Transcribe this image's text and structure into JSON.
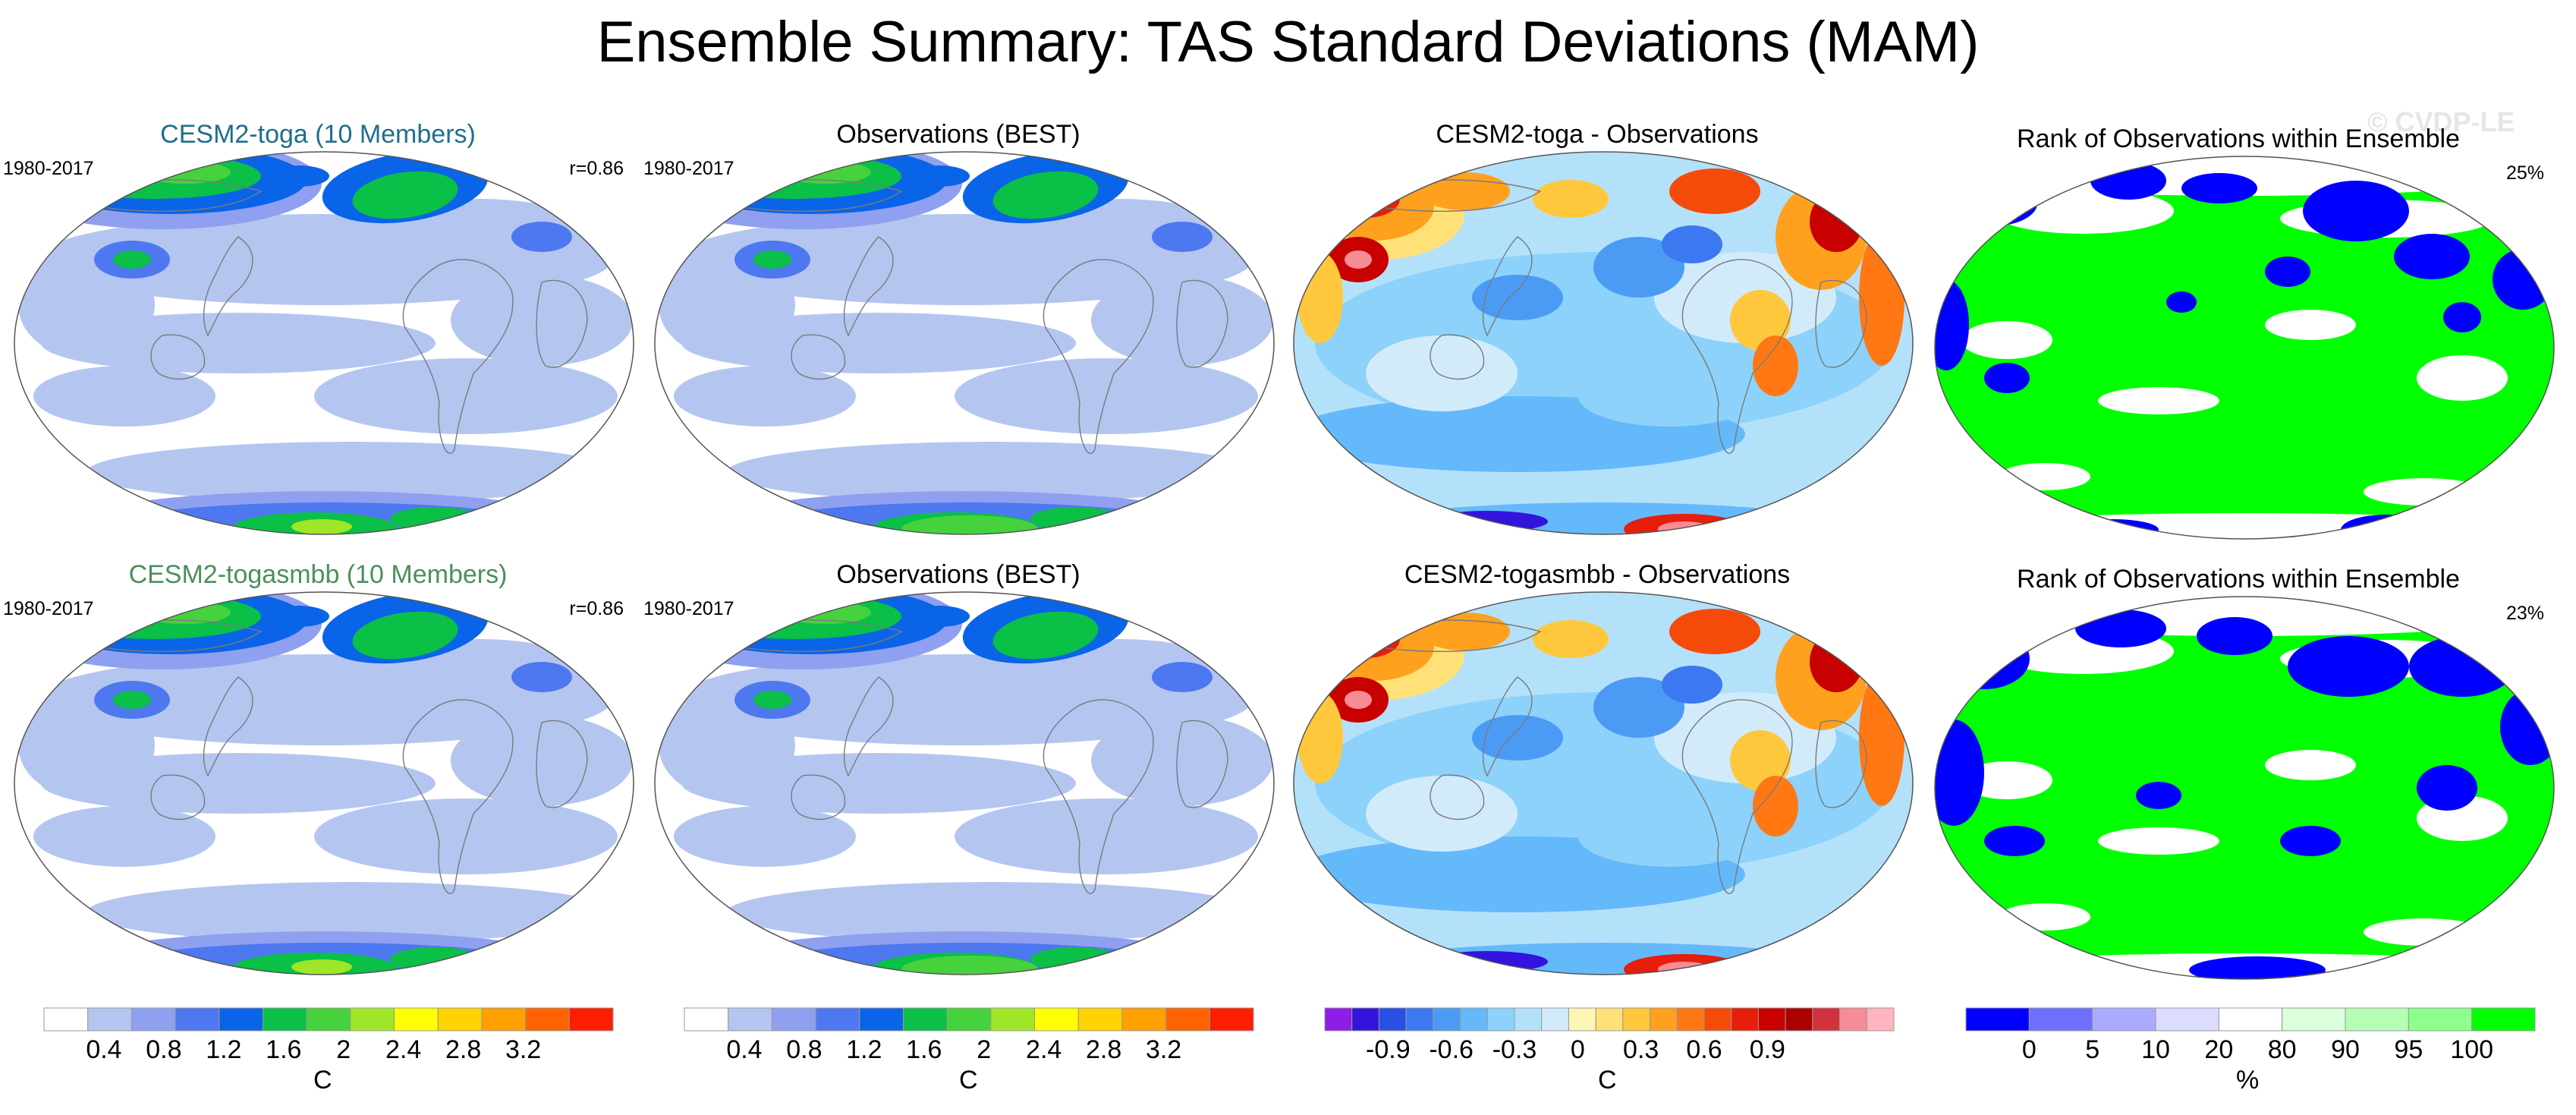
{
  "title": "Ensemble Summary: TAS Standard Deviations (MAM)",
  "watermark": "© CVDP-LE",
  "palettes": {
    "sd": [
      "#ffffff",
      "#b4c6f0",
      "#8fa0f0",
      "#4e78f0",
      "#0a64e8",
      "#0ac046",
      "#46d23c",
      "#a0e628",
      "#ffff00",
      "#ffd200",
      "#ffa000",
      "#ff6400",
      "#ff1e00"
    ],
    "diff": [
      "#8c1ee6",
      "#3214dc",
      "#2850e6",
      "#3c78f0",
      "#4b9bf5",
      "#64b9fa",
      "#8cd2fa",
      "#b4e1fa",
      "#d2ebfa",
      "#fff5b4",
      "#ffe178",
      "#ffc83c",
      "#ffa01e",
      "#ff7814",
      "#f54b0a",
      "#e61e0a",
      "#c80000",
      "#aa0000",
      "#d2323c",
      "#f58c96",
      "#ffb4be"
    ],
    "rank": [
      "#0000ff",
      "#6e6eff",
      "#aaaaff",
      "#dcdcff",
      "#ffffff",
      "#dcffdc",
      "#b4ffb4",
      "#8cff8c",
      "#00ff00"
    ]
  },
  "chart_data": [
    {
      "type": "heatmap",
      "title": "CESM2-toga (10 Members)",
      "period": "1980-2017",
      "stat_label": "r=0.86",
      "pattern_correlation": 0.86,
      "colorbar": "sd",
      "members": 10
    },
    {
      "type": "heatmap",
      "title": "Observations (BEST)",
      "period": "1980-2017",
      "colorbar": "sd"
    },
    {
      "type": "heatmap",
      "title": "CESM2-toga - Observations",
      "colorbar": "diff"
    },
    {
      "type": "heatmap",
      "title": "Rank of Observations within Ensemble",
      "stat_label": "25%",
      "rank_fraction_percent": 25,
      "colorbar": "rank"
    },
    {
      "type": "heatmap",
      "title": "CESM2-togasmbb (10 Members)",
      "period": "1980-2017",
      "stat_label": "r=0.86",
      "pattern_correlation": 0.86,
      "colorbar": "sd",
      "members": 10
    },
    {
      "type": "heatmap",
      "title": "Observations (BEST)",
      "period": "1980-2017",
      "colorbar": "sd"
    },
    {
      "type": "heatmap",
      "title": "CESM2-togasmbb - Observations",
      "colorbar": "diff"
    },
    {
      "type": "heatmap",
      "title": "Rank of Observations within Ensemble",
      "stat_label": "23%",
      "rank_fraction_percent": 23,
      "colorbar": "rank"
    }
  ],
  "colorbars": [
    {
      "id": "sd",
      "palette": "sd",
      "unit": "C",
      "boundaries": [
        0.4,
        0.6,
        0.8,
        1.0,
        1.2,
        1.4,
        1.6,
        1.8,
        2.0,
        2.2,
        2.4,
        2.6,
        2.8,
        3.0,
        3.2,
        3.4
      ],
      "labels": [
        {
          "text": "0.4",
          "value": 0.4
        },
        {
          "text": "0.8",
          "value": 0.8
        },
        {
          "text": "1.2",
          "value": 1.2
        },
        {
          "text": "1.6",
          "value": 1.6
        },
        {
          "text": "2",
          "value": 2.0
        },
        {
          "text": "2.4",
          "value": 2.4
        },
        {
          "text": "2.8",
          "value": 2.8
        },
        {
          "text": "3.2",
          "value": 3.2
        }
      ]
    },
    {
      "id": "sd2",
      "palette": "sd",
      "unit": "C",
      "labels": [
        {
          "text": "0.4",
          "value": 0.4
        },
        {
          "text": "0.8",
          "value": 0.8
        },
        {
          "text": "1.2",
          "value": 1.2
        },
        {
          "text": "1.6",
          "value": 1.6
        },
        {
          "text": "2",
          "value": 2.0
        },
        {
          "text": "2.4",
          "value": 2.4
        },
        {
          "text": "2.8",
          "value": 2.8
        },
        {
          "text": "3.2",
          "value": 3.2
        }
      ]
    },
    {
      "id": "diff",
      "palette": "diff",
      "unit": "C",
      "labels": [
        {
          "text": "-0.9",
          "value": -0.9
        },
        {
          "text": "-0.6",
          "value": -0.6
        },
        {
          "text": "-0.3",
          "value": -0.3
        },
        {
          "text": "0",
          "value": 0
        },
        {
          "text": "0.3",
          "value": 0.3
        },
        {
          "text": "0.6",
          "value": 0.6
        },
        {
          "text": "0.9",
          "value": 0.9
        }
      ]
    },
    {
      "id": "rank",
      "palette": "rank",
      "unit": "%",
      "labels": [
        {
          "text": "0",
          "value": 0
        },
        {
          "text": "5",
          "value": 5
        },
        {
          "text": "10",
          "value": 10
        },
        {
          "text": "20",
          "value": 20
        },
        {
          "text": "80",
          "value": 80
        },
        {
          "text": "90",
          "value": 90
        },
        {
          "text": "95",
          "value": 95
        },
        {
          "text": "100",
          "value": 100
        }
      ]
    }
  ]
}
